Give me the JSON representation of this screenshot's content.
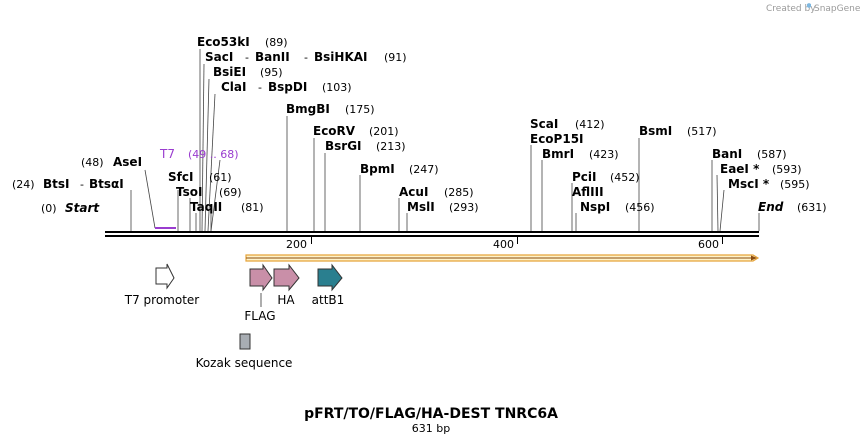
{
  "credit": {
    "created_by": "Created by",
    "brand": "SnapGene"
  },
  "title": "pFRT/TO/FLAG/HA-DEST TNRC6A",
  "length_label": "631 bp",
  "ruler_ticks": [
    "200",
    "400",
    "600"
  ],
  "sites": {
    "start": {
      "name": "Start",
      "pos": "(0)"
    },
    "end": {
      "name": "End",
      "pos": "(631)"
    },
    "btsi": {
      "name": "BtsI",
      "sep": "-",
      "name2": "BtsαI",
      "pos": "(24)"
    },
    "asei": {
      "name": "AseI",
      "pos": "(48)"
    },
    "t7": {
      "name": "T7",
      "pos": "(49 .. 68)"
    },
    "sfci": {
      "name": "SfcI",
      "pos": "(61)"
    },
    "tsoi": {
      "name": "TsoI",
      "pos": "(69)"
    },
    "taqii": {
      "name": "TaqII",
      "pos": "(81)"
    },
    "eco53ki": {
      "name": "Eco53kI",
      "pos": "(89)"
    },
    "saci": {
      "name": "SacI",
      "sep1": "-",
      "name2": "BanII",
      "sep2": "-",
      "name3": "BsiHKAI",
      "pos": "(91)"
    },
    "bsiei": {
      "name": "BsiEI",
      "pos": "(95)"
    },
    "clai": {
      "name": "ClaI",
      "sep": "-",
      "name2": "BspDI",
      "pos": "(103)"
    },
    "bmgbi": {
      "name": "BmgBI",
      "pos": "(175)"
    },
    "ecorv": {
      "name": "EcoRV",
      "pos": "(201)"
    },
    "bsrgi": {
      "name": "BsrGI",
      "pos": "(213)"
    },
    "bpmi": {
      "name": "BpmI",
      "pos": "(247)"
    },
    "acui": {
      "name": "AcuI",
      "pos": "(285)"
    },
    "msli": {
      "name": "MslI",
      "pos": "(293)"
    },
    "scai": {
      "name": "ScaI",
      "pos": "(412)"
    },
    "ecop15i": {
      "name": "EcoP15I",
      "pos": ""
    },
    "bmri": {
      "name": "BmrI",
      "pos": "(423)"
    },
    "pcii": {
      "name": "PciI",
      "pos": "(452)"
    },
    "afliii": {
      "name": "AflIII",
      "pos": ""
    },
    "nspi": {
      "name": "NspI",
      "pos": "(456)"
    },
    "bsmi": {
      "name": "BsmI",
      "pos": "(517)"
    },
    "bani": {
      "name": "BanI",
      "pos": "(587)"
    },
    "eaei": {
      "name": "EaeI *",
      "pos": "(593)"
    },
    "msci": {
      "name": "MscI *",
      "pos": "(595)"
    }
  },
  "features": {
    "t7_promoter": "T7 promoter",
    "flag": "FLAG",
    "ha": "HA",
    "attb1": "attB1",
    "kozak": "Kozak sequence"
  },
  "colors": {
    "t7": "#9a3ccf",
    "tag": "#c98fa8",
    "attb1": "#2a7f8f",
    "orf_fill": "#fff3c9",
    "orf_stroke": "#e5a33a",
    "kozak": "#a8adb3"
  }
}
